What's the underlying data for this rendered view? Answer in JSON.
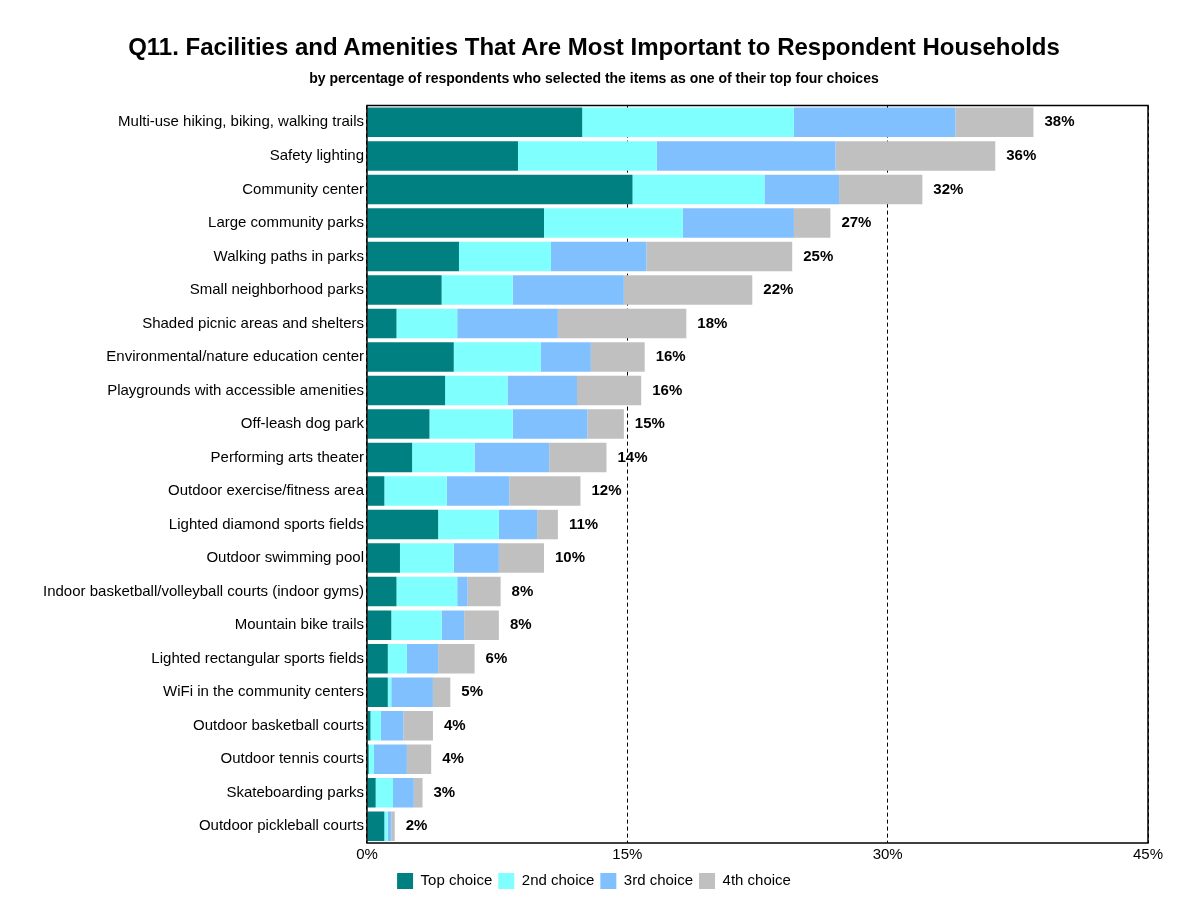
{
  "chart_data": {
    "type": "bar",
    "orientation": "horizontal",
    "stacked": true,
    "title": "Q11. Facilities and Amenities That Are Most Important to Respondent Households",
    "subtitle": "by percentage of respondents who selected the items as one of their top four choices",
    "categories": [
      "Multi-use hiking, biking, walking trails",
      "Safety lighting",
      "Community center",
      "Large community parks",
      "Walking paths in parks",
      "Small neighborhood parks",
      "Shaded picnic areas and shelters",
      "Environmental/nature education center",
      "Playgrounds with accessible amenities",
      "Off-leash dog park",
      "Performing arts theater",
      "Outdoor exercise/fitness area",
      "Lighted diamond sports fields",
      "Outdoor swimming pool",
      "Indoor basketball/volleyball courts (indoor gyms)",
      "Mountain bike trails",
      "Lighted rectangular sports fields",
      "WiFi in the community centers",
      "Outdoor basketball courts",
      "Outdoor tennis courts",
      "Skateboarding parks",
      "Outdoor pickleball courts"
    ],
    "series": [
      {
        "name": "Top choice",
        "color": "#008080",
        "values": [
          12.4,
          8.7,
          15.3,
          10.2,
          5.3,
          4.3,
          1.7,
          5.0,
          4.5,
          3.6,
          2.6,
          1.0,
          4.1,
          1.9,
          1.7,
          1.4,
          1.2,
          1.2,
          0.2,
          0.1,
          0.5,
          1.0
        ]
      },
      {
        "name": "2nd choice",
        "color": "#80ffff",
        "values": [
          12.2,
          8.0,
          7.6,
          8.0,
          5.3,
          4.1,
          3.5,
          5.0,
          3.6,
          4.8,
          3.6,
          3.6,
          3.5,
          3.1,
          3.5,
          2.9,
          1.1,
          0.2,
          0.6,
          0.3,
          1.0,
          0.2
        ]
      },
      {
        "name": "3rd choice",
        "color": "#80c0ff",
        "values": [
          9.3,
          10.3,
          4.3,
          6.4,
          5.5,
          6.4,
          5.8,
          2.9,
          4.0,
          4.3,
          4.3,
          3.6,
          2.2,
          2.6,
          0.6,
          1.3,
          1.8,
          2.4,
          1.3,
          1.9,
          1.2,
          0.2
        ]
      },
      {
        "name": "4th choice",
        "color": "#c0c0c0",
        "values": [
          4.5,
          9.2,
          4.8,
          2.1,
          8.4,
          7.4,
          7.4,
          3.1,
          3.7,
          2.1,
          3.3,
          4.1,
          1.2,
          2.6,
          1.9,
          2.0,
          2.1,
          1.0,
          1.7,
          1.4,
          0.5,
          0.2
        ]
      }
    ],
    "totals": [
      "38%",
      "36%",
      "32%",
      "27%",
      "25%",
      "22%",
      "18%",
      "16%",
      "16%",
      "15%",
      "14%",
      "12%",
      "11%",
      "10%",
      "8%",
      "8%",
      "6%",
      "5%",
      "4%",
      "4%",
      "3%",
      "2%"
    ],
    "xlim": [
      0,
      45
    ],
    "xticks": [
      {
        "value": 0,
        "label": "0%"
      },
      {
        "value": 15,
        "label": "15%"
      },
      {
        "value": 30,
        "label": "30%"
      },
      {
        "value": 45,
        "label": "45%"
      }
    ],
    "grid": "x",
    "legend": "bottom"
  }
}
